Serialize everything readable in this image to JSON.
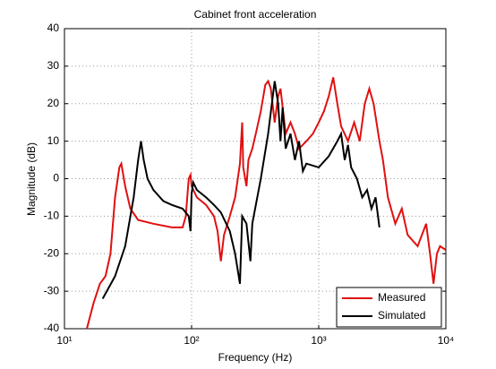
{
  "chart_data": {
    "type": "line",
    "title": "Cabinet front acceleration",
    "x_label": "Frequency (Hz)",
    "y_label": "Magnitude (dB)",
    "xscale": "log",
    "grid": true,
    "legend": "lower right",
    "xlim": [
      10,
      10000
    ],
    "ylim": [
      -40,
      40
    ],
    "xticks": [
      {
        "value": 10,
        "label": "10¹"
      },
      {
        "value": 100,
        "label": "10²"
      },
      {
        "value": 1000,
        "label": "10³"
      },
      {
        "value": 10000,
        "label": "10⁴"
      }
    ],
    "yticks": [
      -40,
      -30,
      -20,
      -10,
      0,
      10,
      20,
      30,
      40
    ],
    "series": [
      {
        "name": "Measured",
        "color": "#e01010",
        "x": [
          15,
          17,
          19,
          21,
          23,
          25,
          27,
          28,
          30,
          33,
          38,
          50,
          70,
          85,
          90,
          95,
          98,
          100,
          110,
          130,
          150,
          160,
          170,
          180,
          200,
          220,
          240,
          250,
          255,
          270,
          280,
          300,
          320,
          350,
          380,
          400,
          420,
          450,
          480,
          500,
          550,
          600,
          650,
          700,
          800,
          900,
          1000,
          1100,
          1200,
          1300,
          1400,
          1500,
          1700,
          1900,
          2100,
          2300,
          2500,
          2700,
          3000,
          3200,
          3500,
          4000,
          4500,
          5000,
          6000,
          7000,
          7500,
          8000,
          8500,
          9000,
          10000
        ],
        "values": [
          -40,
          -33,
          -28,
          -26,
          -20,
          -5,
          3,
          4,
          -2,
          -8,
          -11,
          -12,
          -13,
          -13,
          -10,
          0,
          1,
          -2,
          -5,
          -7,
          -10,
          -14,
          -22,
          -15,
          -10,
          -5,
          4,
          15,
          3,
          -2,
          5,
          8,
          12,
          18,
          25,
          26,
          24,
          15,
          22,
          24,
          12,
          15,
          12,
          8,
          10,
          12,
          15,
          18,
          22,
          27,
          20,
          14,
          10,
          15,
          10,
          20,
          24,
          20,
          10,
          5,
          -5,
          -12,
          -8,
          -15,
          -18,
          -12,
          -20,
          -28,
          -20,
          -18,
          -19
        ]
      },
      {
        "name": "Simulated",
        "color": "#000000",
        "x": [
          20,
          25,
          30,
          35,
          38,
          40,
          42,
          45,
          50,
          60,
          70,
          85,
          95,
          98,
          100,
          103,
          110,
          130,
          150,
          170,
          200,
          220,
          240,
          250,
          270,
          290,
          300,
          350,
          400,
          450,
          480,
          500,
          520,
          550,
          600,
          650,
          700,
          750,
          800,
          1000,
          1200,
          1400,
          1500,
          1600,
          1700,
          1800,
          2000,
          2200,
          2400,
          2600,
          2800,
          3000
        ],
        "values": [
          -32,
          -26,
          -18,
          -5,
          5,
          10,
          5,
          0,
          -3,
          -6,
          -7,
          -8,
          -10,
          -14,
          -4,
          -1,
          -3,
          -5,
          -7,
          -9,
          -14,
          -20,
          -28,
          -10,
          -12,
          -22,
          -12,
          0,
          12,
          26,
          20,
          10,
          19,
          8,
          12,
          5,
          10,
          2,
          4,
          3,
          6,
          10,
          12,
          5,
          9,
          3,
          0,
          -5,
          -3,
          -8,
          -5,
          -13
        ]
      }
    ]
  }
}
